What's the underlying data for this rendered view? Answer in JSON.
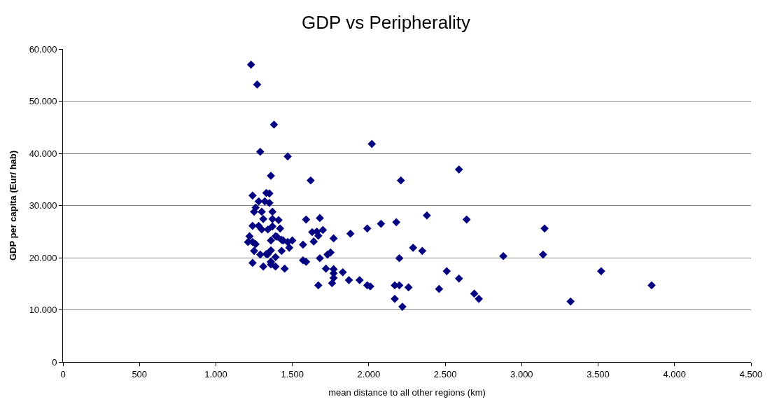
{
  "chart_data": {
    "type": "scatter",
    "title": "GDP vs Peripherality",
    "xlabel": "mean distance to all other regions (km)",
    "ylabel": "GDP per capita (Eur/ hab)",
    "series": [
      {
        "color": "#000080",
        "x": [
          1230,
          1270,
          1380,
          1290,
          1470,
          1360,
          1620,
          2020,
          1350,
          1350,
          1370,
          1590,
          1680,
          2080,
          2180,
          2380,
          1990,
          1880,
          1770,
          1410,
          1420,
          1700,
          1630,
          1660,
          1670,
          1640,
          1390,
          1440,
          1470,
          1500,
          1480,
          1430,
          1360,
          1570,
          1360,
          1390,
          1750,
          1730,
          1680,
          1570,
          1590,
          2200,
          2290,
          2350,
          2510,
          1360,
          1390,
          1450,
          1720,
          1770,
          1770,
          1770,
          1760,
          1830,
          1870,
          1940,
          1990,
          2010,
          1670,
          2170,
          2200,
          2260,
          2460,
          2170,
          2220,
          2590,
          2640,
          3150,
          2880,
          3140,
          2590,
          3520,
          3850,
          2690,
          2720,
          3320,
          1240,
          1330,
          1280,
          1320,
          1260,
          1250,
          1300,
          1310,
          1370,
          1240,
          1280,
          1300,
          1340,
          1370,
          1220,
          1210,
          1240,
          1260,
          1340,
          1400,
          1430,
          1250,
          1290,
          1330,
          1360,
          1240,
          1310,
          1360,
          2210
        ],
        "values": [
          57000,
          53200,
          45500,
          40300,
          39400,
          35700,
          34800,
          41800,
          32300,
          30500,
          28800,
          27300,
          27600,
          26500,
          26800,
          28100,
          25600,
          24600,
          23700,
          27200,
          25600,
          25300,
          24900,
          25000,
          24200,
          23100,
          24100,
          23300,
          23000,
          23300,
          21900,
          21300,
          23300,
          22500,
          21400,
          20100,
          21000,
          20600,
          19900,
          19500,
          19200,
          19900,
          21900,
          21300,
          17400,
          18700,
          18300,
          17900,
          17900,
          17800,
          17000,
          16100,
          15100,
          17200,
          15700,
          15700,
          14700,
          14500,
          14700,
          14700,
          14700,
          14300,
          14000,
          12100,
          10600,
          36900,
          27300,
          25600,
          20300,
          20600,
          16000,
          17400,
          14700,
          13100,
          12100,
          11600,
          31900,
          32400,
          30800,
          30800,
          29600,
          28800,
          28800,
          27400,
          27400,
          26100,
          26100,
          25400,
          25400,
          26000,
          24100,
          23000,
          23000,
          22600,
          20700,
          24000,
          23400,
          21300,
          20600,
          20700,
          19200,
          19000,
          18300,
          19200,
          34800
        ]
      }
    ],
    "xlim": [
      0,
      4500
    ],
    "ylim": [
      0,
      60000
    ],
    "xticks": [
      0,
      500,
      {
        "value": 1000,
        "label": "1.000"
      },
      {
        "value": 1500,
        "label": "1.500"
      },
      {
        "value": 2000,
        "label": "2.000"
      },
      {
        "value": 2500,
        "label": "2.500"
      },
      {
        "value": 3000,
        "label": "3.000"
      },
      {
        "value": 3500,
        "label": "3.500"
      },
      {
        "value": 4000,
        "label": "4.000"
      },
      {
        "value": 4500,
        "label": "4.500"
      }
    ],
    "yticks": [
      0,
      {
        "value": 10000,
        "label": "10.000"
      },
      {
        "value": 20000,
        "label": "20.000"
      },
      {
        "value": 30000,
        "label": "30.000"
      },
      {
        "value": 40000,
        "label": "40.000"
      },
      {
        "value": 50000,
        "label": "50.000"
      },
      {
        "value": 60000,
        "label": "60.000"
      }
    ],
    "grid": "y",
    "marker": "diamond"
  }
}
